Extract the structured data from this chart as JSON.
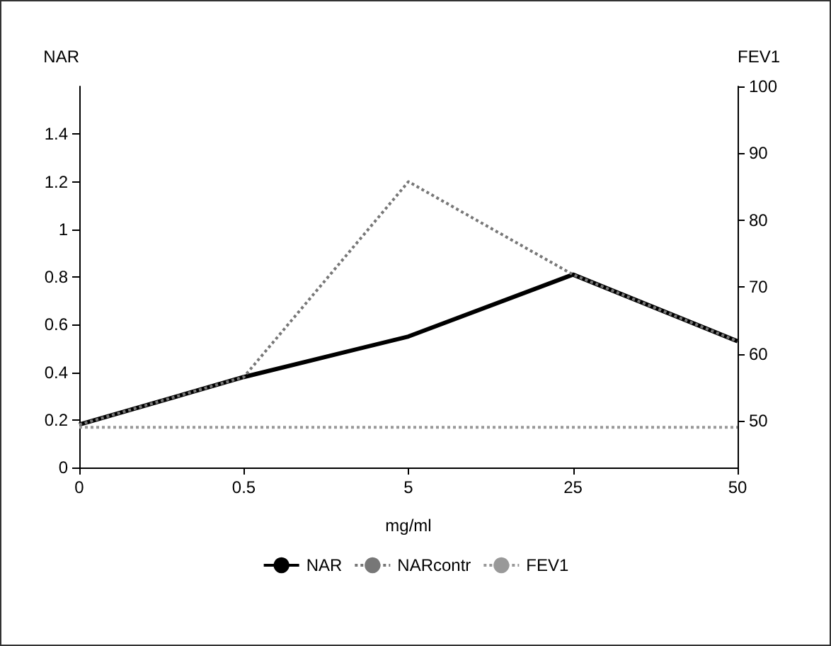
{
  "chart_data": {
    "type": "line",
    "xlabel": "mg/ml",
    "ylabel": "NAR",
    "y2label": "FEV1",
    "categories": [
      "0",
      "0.5",
      "5",
      "25",
      "50"
    ],
    "series": [
      {
        "name": "NAR",
        "color": "#000000",
        "values": [
          0.18,
          0.38,
          0.55,
          0.81,
          0.53
        ],
        "line_style": "solid"
      },
      {
        "name": "NARcontr",
        "color": "#777777",
        "values": [
          0.18,
          0.38,
          1.2,
          0.81,
          0.53
        ],
        "line_style": "dotted"
      },
      {
        "name": "FEV1",
        "color": "#999999",
        "values": [
          49,
          49,
          49,
          49,
          49
        ],
        "axis": "y2",
        "line_style": "dotted"
      }
    ],
    "ylim": [
      0,
      1.6
    ],
    "yticks": [
      0,
      0.2,
      0.4,
      0.6,
      0.8,
      1,
      1.2,
      1.4
    ],
    "y2lim": [
      43,
      100
    ],
    "y2ticks": [
      50,
      60,
      70,
      80,
      90,
      100
    ],
    "legend": "bottom",
    "grid": false,
    "marker": "none"
  }
}
